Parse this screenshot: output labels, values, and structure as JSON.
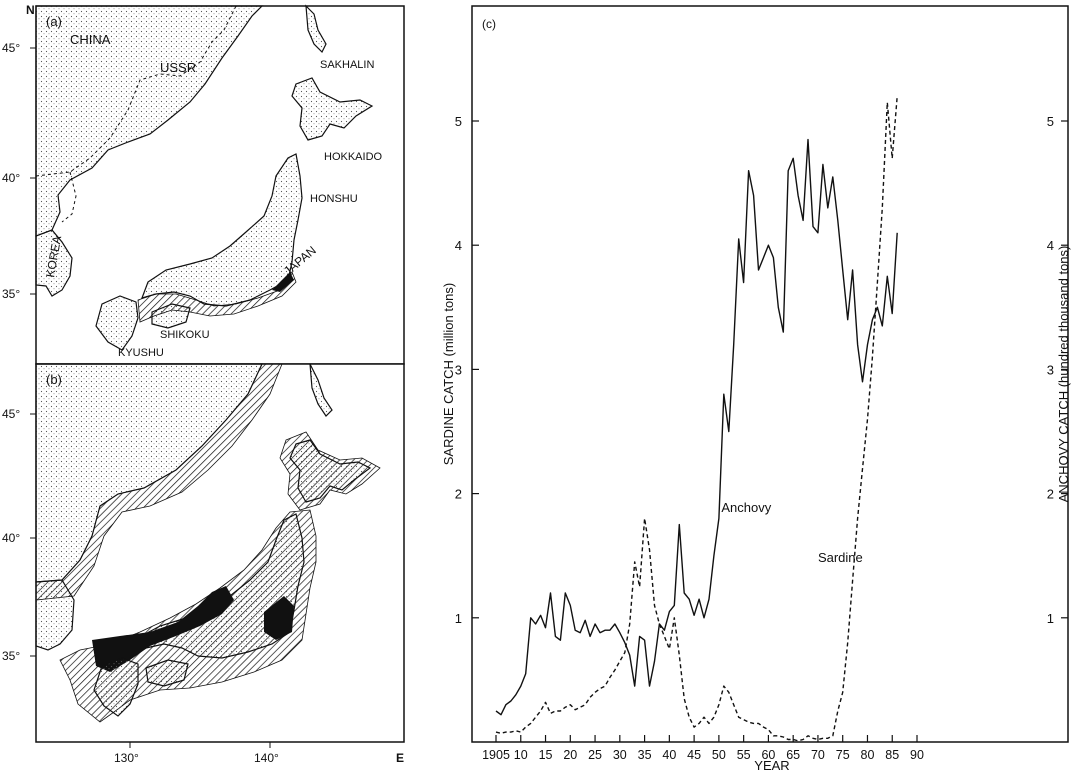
{
  "maps": {
    "a": {
      "label": "(a)",
      "places": [
        "CHINA",
        "USSR",
        "SAKHALIN",
        "HOKKAIDO",
        "HONSHU",
        "KOREA",
        "JAPAN",
        "SHIKOKU",
        "KYUSHU"
      ],
      "lat_labels": [
        "45°",
        "40°",
        "35°"
      ],
      "north_label": "N"
    },
    "b": {
      "label": "(b)",
      "lat_labels": [
        "45°",
        "40°",
        "35°"
      ],
      "lon_labels": [
        "130°",
        "140°"
      ],
      "east_label": "E"
    }
  },
  "chart_data": {
    "type": "line",
    "panel_label": "(c)",
    "xlabel": "YEAR",
    "ylabel_left": "SARDINE CATCH (million tons)",
    "ylabel_right": "ANCHOVY CATCH (hundred thousand tons)",
    "x_ticks": [
      "1905",
      "10",
      "15",
      "20",
      "25",
      "30",
      "35",
      "40",
      "45",
      "50",
      "55",
      "60",
      "65",
      "70",
      "75",
      "80",
      "85",
      "90"
    ],
    "y_ticks": [
      "1",
      "2",
      "3",
      "4",
      "5"
    ],
    "xlim": [
      1903,
      1892
    ],
    "ylim": [
      0,
      5.9
    ],
    "grid": false,
    "series": [
      {
        "name": "Anchovy",
        "style": "solid",
        "x": [
          1905,
          1906,
          1907,
          1908,
          1909,
          1910,
          1911,
          1912,
          1913,
          1914,
          1915,
          1916,
          1917,
          1918,
          1919,
          1920,
          1921,
          1922,
          1923,
          1924,
          1925,
          1926,
          1927,
          1928,
          1929,
          1930,
          1931,
          1932,
          1933,
          1934,
          1935,
          1936,
          1937,
          1938,
          1939,
          1940,
          1941,
          1942,
          1943,
          1944,
          1945,
          1946,
          1947,
          1948,
          1949,
          1950,
          1951,
          1952,
          1953,
          1954,
          1955,
          1956,
          1957,
          1958,
          1959,
          1960,
          1961,
          1962,
          1963,
          1964,
          1965,
          1966,
          1967,
          1968,
          1969,
          1970,
          1971,
          1972,
          1973,
          1974,
          1975,
          1976,
          1977,
          1978,
          1979,
          1980,
          1981,
          1982,
          1983,
          1984,
          1985,
          1986
        ],
        "values": [
          0.25,
          0.22,
          0.3,
          0.33,
          0.38,
          0.45,
          0.55,
          1.0,
          0.95,
          1.02,
          0.92,
          1.2,
          0.85,
          0.82,
          1.2,
          1.1,
          0.9,
          0.88,
          0.98,
          0.85,
          0.95,
          0.88,
          0.9,
          0.9,
          0.95,
          0.88,
          0.8,
          0.7,
          0.45,
          0.85,
          0.82,
          0.45,
          0.65,
          0.95,
          0.9,
          1.05,
          1.1,
          1.75,
          1.2,
          1.15,
          1.02,
          1.15,
          1.0,
          1.15,
          1.5,
          1.8,
          2.8,
          2.5,
          3.2,
          4.05,
          3.7,
          4.6,
          4.4,
          3.8,
          3.9,
          4.0,
          3.9,
          3.5,
          3.3,
          4.6,
          4.7,
          4.4,
          4.2,
          4.85,
          4.15,
          4.1,
          4.65,
          4.3,
          4.55,
          4.2,
          3.8,
          3.4,
          3.8,
          3.2,
          2.9,
          3.2,
          3.4,
          3.5,
          3.35,
          3.75,
          3.45,
          4.1
        ]
      },
      {
        "name": "Sardine",
        "style": "dashed",
        "x": [
          1905,
          1906,
          1907,
          1908,
          1909,
          1910,
          1911,
          1912,
          1913,
          1914,
          1915,
          1916,
          1917,
          1918,
          1919,
          1920,
          1921,
          1922,
          1923,
          1924,
          1925,
          1926,
          1927,
          1928,
          1929,
          1930,
          1931,
          1932,
          1933,
          1934,
          1935,
          1936,
          1937,
          1938,
          1939,
          1940,
          1941,
          1942,
          1943,
          1944,
          1945,
          1946,
          1947,
          1948,
          1949,
          1950,
          1951,
          1952,
          1953,
          1954,
          1955,
          1956,
          1957,
          1958,
          1959,
          1960,
          1961,
          1962,
          1963,
          1964,
          1965,
          1966,
          1967,
          1968,
          1969,
          1970,
          1971,
          1972,
          1973,
          1974,
          1975,
          1976,
          1977,
          1978,
          1979,
          1980,
          1981,
          1982,
          1983,
          1984,
          1985,
          1986
        ],
        "values": [
          0.08,
          0.07,
          0.08,
          0.08,
          0.09,
          0.08,
          0.12,
          0.15,
          0.2,
          0.25,
          0.32,
          0.23,
          0.25,
          0.25,
          0.28,
          0.3,
          0.26,
          0.28,
          0.3,
          0.36,
          0.4,
          0.43,
          0.45,
          0.52,
          0.58,
          0.65,
          0.72,
          0.95,
          1.45,
          1.25,
          1.8,
          1.55,
          1.1,
          0.95,
          0.85,
          0.75,
          1.0,
          0.7,
          0.35,
          0.2,
          0.12,
          0.15,
          0.2,
          0.15,
          0.2,
          0.3,
          0.45,
          0.4,
          0.3,
          0.2,
          0.18,
          0.16,
          0.15,
          0.15,
          0.12,
          0.1,
          0.05,
          0.05,
          0.04,
          0.02,
          0.02,
          0.01,
          0.02,
          0.05,
          0.03,
          0.02,
          0.03,
          0.03,
          0.05,
          0.25,
          0.4,
          0.8,
          1.3,
          1.8,
          2.2,
          2.6,
          3.1,
          3.7,
          4.3,
          5.15,
          4.7,
          5.2
        ]
      }
    ]
  }
}
